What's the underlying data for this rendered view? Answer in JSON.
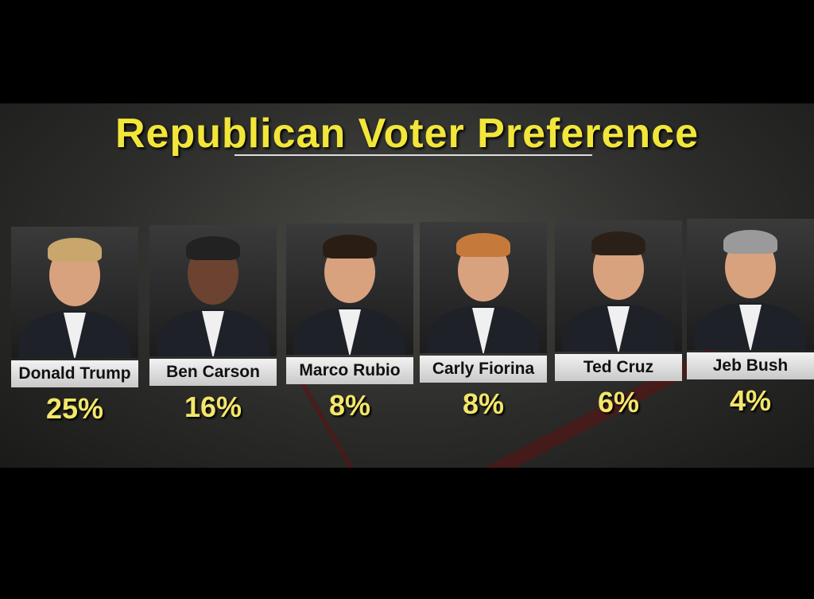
{
  "header": {
    "title": "Republican Voter Preference"
  },
  "candidates": [
    {
      "name": "Donald Trump",
      "share": "25%"
    },
    {
      "name": "Ben Carson",
      "share": "16%"
    },
    {
      "name": "Marco Rubio",
      "share": "8%"
    },
    {
      "name": "Carly Fiorina",
      "share": "8%"
    },
    {
      "name": "Ted Cruz",
      "share": "6%"
    },
    {
      "name": "Jeb Bush",
      "share": "4%"
    }
  ]
}
